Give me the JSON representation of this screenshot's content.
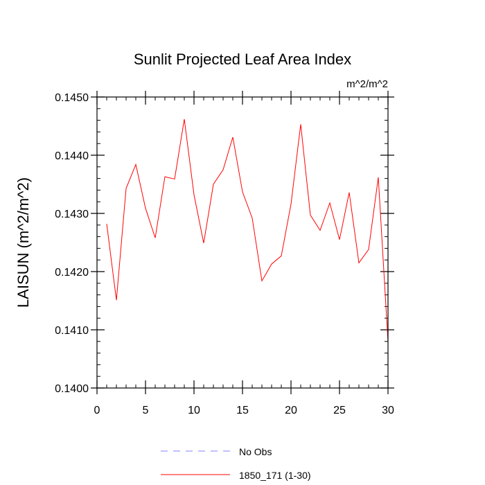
{
  "chart_data": {
    "type": "line",
    "title": "Sunlit Projected Leaf Area Index",
    "units": "m^2/m^2",
    "ylabel": "LAISUN  (m^2/m^2)",
    "xlabel": "",
    "xlim": [
      0,
      30
    ],
    "ylim": [
      0.14,
      0.145
    ],
    "xticks": [
      0,
      5,
      10,
      15,
      20,
      25,
      30
    ],
    "yticks": [
      0.14,
      0.141,
      0.142,
      0.143,
      0.144,
      0.145
    ],
    "xtick_labels": [
      "0",
      "5",
      "10",
      "15",
      "20",
      "25",
      "30"
    ],
    "ytick_labels": [
      "0.1400",
      "0.1410",
      "0.1420",
      "0.1430",
      "0.1440",
      "0.1450"
    ],
    "grid": false,
    "legend_position": "bottom",
    "series": [
      {
        "name": "1850_171 (1-30)",
        "color": "#ff0000",
        "style": "solid",
        "x": [
          1,
          2,
          3,
          4,
          5,
          6,
          7,
          8,
          9,
          10,
          11,
          12,
          13,
          14,
          15,
          16,
          17,
          18,
          19,
          20,
          21,
          22,
          23,
          24,
          25,
          26,
          27,
          28,
          29,
          30
        ],
        "y": [
          0.14282,
          0.14151,
          0.14343,
          0.14384,
          0.14309,
          0.14258,
          0.14363,
          0.14359,
          0.14462,
          0.14332,
          0.14249,
          0.1435,
          0.14375,
          0.14431,
          0.14337,
          0.14292,
          0.14184,
          0.14213,
          0.14227,
          0.14316,
          0.14453,
          0.14297,
          0.14271,
          0.14318,
          0.14255,
          0.14336,
          0.14215,
          0.14238,
          0.14362,
          0.1408
        ]
      }
    ],
    "legend": [
      {
        "label": "No Obs",
        "color": "#8080ff",
        "style": "dashed"
      },
      {
        "label": "1850_171 (1-30)",
        "color": "#ff0000",
        "style": "solid"
      }
    ]
  }
}
